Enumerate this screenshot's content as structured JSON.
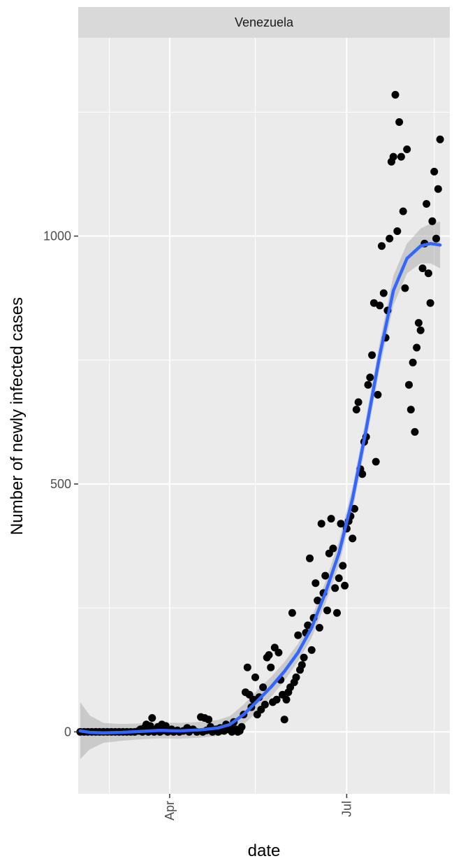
{
  "chart_data": {
    "type": "scatter",
    "facet_label": "Venezuela",
    "xlabel": "date",
    "ylabel": "Number of newly infected cases",
    "x_type": "date",
    "xlim": [
      "2020-02-14",
      "2020-08-23"
    ],
    "ylim": [
      -125,
      1400
    ],
    "x_ticks": [
      {
        "date": "2020-04-01",
        "label": "Apr"
      },
      {
        "date": "2020-07-01",
        "label": "Jul"
      }
    ],
    "x_minor_ticks": [
      "2020-03-01",
      "2020-05-15",
      "2020-08-15"
    ],
    "y_ticks": [
      0,
      500,
      1000
    ],
    "y_minor_ticks": [
      250,
      750,
      1250
    ],
    "grid": true,
    "colors": {
      "points": "#000000",
      "smooth_line": "#3366ff",
      "ribbon": "#999999",
      "panel": "#ebebeb",
      "strip": "#d9d9d9"
    },
    "points": [
      [
        "2020-02-15",
        0
      ],
      [
        "2020-02-17",
        0
      ],
      [
        "2020-02-19",
        0
      ],
      [
        "2020-02-21",
        0
      ],
      [
        "2020-02-23",
        0
      ],
      [
        "2020-02-25",
        0
      ],
      [
        "2020-02-27",
        0
      ],
      [
        "2020-02-29",
        0
      ],
      [
        "2020-03-02",
        0
      ],
      [
        "2020-03-04",
        0
      ],
      [
        "2020-03-06",
        0
      ],
      [
        "2020-03-08",
        0
      ],
      [
        "2020-03-10",
        0
      ],
      [
        "2020-03-12",
        0
      ],
      [
        "2020-03-14",
        0
      ],
      [
        "2020-03-16",
        2
      ],
      [
        "2020-03-17",
        5
      ],
      [
        "2020-03-18",
        0
      ],
      [
        "2020-03-19",
        8
      ],
      [
        "2020-03-20",
        15
      ],
      [
        "2020-03-21",
        0
      ],
      [
        "2020-03-22",
        12
      ],
      [
        "2020-03-23",
        28
      ],
      [
        "2020-03-24",
        0
      ],
      [
        "2020-03-25",
        5
      ],
      [
        "2020-03-26",
        10
      ],
      [
        "2020-03-27",
        0
      ],
      [
        "2020-03-28",
        15
      ],
      [
        "2020-03-29",
        3
      ],
      [
        "2020-03-30",
        12
      ],
      [
        "2020-03-31",
        0
      ],
      [
        "2020-04-02",
        5
      ],
      [
        "2020-04-03",
        0
      ],
      [
        "2020-04-05",
        3
      ],
      [
        "2020-04-06",
        0
      ],
      [
        "2020-04-08",
        2
      ],
      [
        "2020-04-10",
        8
      ],
      [
        "2020-04-11",
        0
      ],
      [
        "2020-04-13",
        5
      ],
      [
        "2020-04-15",
        0
      ],
      [
        "2020-04-17",
        30
      ],
      [
        "2020-04-18",
        0
      ],
      [
        "2020-04-19",
        28
      ],
      [
        "2020-04-20",
        3
      ],
      [
        "2020-04-21",
        25
      ],
      [
        "2020-04-22",
        10
      ],
      [
        "2020-04-23",
        0
      ],
      [
        "2020-04-25",
        5
      ],
      [
        "2020-04-26",
        0
      ],
      [
        "2020-04-27",
        8
      ],
      [
        "2020-04-28",
        3
      ],
      [
        "2020-04-29",
        2
      ],
      [
        "2020-04-30",
        15
      ],
      [
        "2020-05-01",
        5
      ],
      [
        "2020-05-02",
        10
      ],
      [
        "2020-05-03",
        0
      ],
      [
        "2020-05-04",
        20
      ],
      [
        "2020-05-05",
        5
      ],
      [
        "2020-05-06",
        0
      ],
      [
        "2020-05-07",
        2
      ],
      [
        "2020-05-08",
        10
      ],
      [
        "2020-05-09",
        35
      ],
      [
        "2020-05-10",
        80
      ],
      [
        "2020-05-11",
        130
      ],
      [
        "2020-05-12",
        75
      ],
      [
        "2020-05-13",
        50
      ],
      [
        "2020-05-14",
        65
      ],
      [
        "2020-05-15",
        110
      ],
      [
        "2020-05-16",
        35
      ],
      [
        "2020-05-17",
        70
      ],
      [
        "2020-05-18",
        45
      ],
      [
        "2020-05-19",
        90
      ],
      [
        "2020-05-20",
        55
      ],
      [
        "2020-05-21",
        150
      ],
      [
        "2020-05-22",
        155
      ],
      [
        "2020-05-23",
        130
      ],
      [
        "2020-05-24",
        60
      ],
      [
        "2020-05-25",
        170
      ],
      [
        "2020-05-26",
        65
      ],
      [
        "2020-05-27",
        160
      ],
      [
        "2020-05-28",
        105
      ],
      [
        "2020-05-29",
        75
      ],
      [
        "2020-05-30",
        25
      ],
      [
        "2020-05-31",
        65
      ],
      [
        "2020-06-01",
        80
      ],
      [
        "2020-06-02",
        90
      ],
      [
        "2020-06-03",
        240
      ],
      [
        "2020-06-04",
        100
      ],
      [
        "2020-06-05",
        110
      ],
      [
        "2020-06-06",
        195
      ],
      [
        "2020-06-07",
        125
      ],
      [
        "2020-06-08",
        135
      ],
      [
        "2020-06-09",
        150
      ],
      [
        "2020-06-10",
        200
      ],
      [
        "2020-06-11",
        215
      ],
      [
        "2020-06-12",
        350
      ],
      [
        "2020-06-13",
        165
      ],
      [
        "2020-06-14",
        230
      ],
      [
        "2020-06-15",
        300
      ],
      [
        "2020-06-16",
        265
      ],
      [
        "2020-06-17",
        210
      ],
      [
        "2020-06-18",
        420
      ],
      [
        "2020-06-19",
        280
      ],
      [
        "2020-06-20",
        315
      ],
      [
        "2020-06-21",
        245
      ],
      [
        "2020-06-22",
        360
      ],
      [
        "2020-06-23",
        430
      ],
      [
        "2020-06-24",
        370
      ],
      [
        "2020-06-25",
        290
      ],
      [
        "2020-06-26",
        240
      ],
      [
        "2020-06-27",
        310
      ],
      [
        "2020-06-28",
        420
      ],
      [
        "2020-06-29",
        335
      ],
      [
        "2020-06-30",
        295
      ],
      [
        "2020-07-01",
        410
      ],
      [
        "2020-07-02",
        425
      ],
      [
        "2020-07-03",
        435
      ],
      [
        "2020-07-04",
        390
      ],
      [
        "2020-07-05",
        450
      ],
      [
        "2020-07-06",
        650
      ],
      [
        "2020-07-07",
        665
      ],
      [
        "2020-07-08",
        530
      ],
      [
        "2020-07-09",
        520
      ],
      [
        "2020-07-10",
        585
      ],
      [
        "2020-07-11",
        595
      ],
      [
        "2020-07-12",
        700
      ],
      [
        "2020-07-13",
        715
      ],
      [
        "2020-07-14",
        760
      ],
      [
        "2020-07-15",
        865
      ],
      [
        "2020-07-16",
        545
      ],
      [
        "2020-07-17",
        680
      ],
      [
        "2020-07-18",
        860
      ],
      [
        "2020-07-19",
        980
      ],
      [
        "2020-07-20",
        885
      ],
      [
        "2020-07-21",
        795
      ],
      [
        "2020-07-22",
        850
      ],
      [
        "2020-07-23",
        995
      ],
      [
        "2020-07-24",
        1150
      ],
      [
        "2020-07-25",
        1160
      ],
      [
        "2020-07-26",
        1285
      ],
      [
        "2020-07-27",
        1010
      ],
      [
        "2020-07-28",
        1230
      ],
      [
        "2020-07-29",
        1160
      ],
      [
        "2020-07-30",
        1050
      ],
      [
        "2020-07-31",
        895
      ],
      [
        "2020-08-01",
        1175
      ],
      [
        "2020-08-02",
        700
      ],
      [
        "2020-08-03",
        650
      ],
      [
        "2020-08-04",
        745
      ],
      [
        "2020-08-05",
        605
      ],
      [
        "2020-08-06",
        775
      ],
      [
        "2020-08-07",
        825
      ],
      [
        "2020-08-08",
        810
      ],
      [
        "2020-08-09",
        935
      ],
      [
        "2020-08-10",
        985
      ],
      [
        "2020-08-11",
        1065
      ],
      [
        "2020-08-12",
        925
      ],
      [
        "2020-08-13",
        865
      ],
      [
        "2020-08-14",
        1030
      ],
      [
        "2020-08-15",
        1130
      ],
      [
        "2020-08-16",
        995
      ],
      [
        "2020-08-17",
        1095
      ],
      [
        "2020-08-18",
        1195
      ]
    ],
    "smooth": [
      [
        "2020-02-15",
        2,
        -55,
        60
      ],
      [
        "2020-02-20",
        -1,
        -35,
        33
      ],
      [
        "2020-02-27",
        -2,
        -22,
        18
      ],
      [
        "2020-03-07",
        -1,
        -18,
        16
      ],
      [
        "2020-03-17",
        1,
        -15,
        17
      ],
      [
        "2020-03-27",
        3,
        -13,
        19
      ],
      [
        "2020-04-06",
        2,
        -14,
        18
      ],
      [
        "2020-04-16",
        4,
        -12,
        20
      ],
      [
        "2020-04-26",
        8,
        -8,
        24
      ],
      [
        "2020-05-02",
        15,
        -2,
        32
      ],
      [
        "2020-05-09",
        35,
        15,
        55
      ],
      [
        "2020-05-16",
        62,
        40,
        84
      ],
      [
        "2020-05-23",
        90,
        70,
        110
      ],
      [
        "2020-05-30",
        122,
        103,
        141
      ],
      [
        "2020-06-06",
        160,
        142,
        178
      ],
      [
        "2020-06-13",
        210,
        190,
        230
      ],
      [
        "2020-06-20",
        280,
        258,
        302
      ],
      [
        "2020-06-27",
        360,
        336,
        384
      ],
      [
        "2020-07-04",
        470,
        446,
        494
      ],
      [
        "2020-07-11",
        610,
        585,
        635
      ],
      [
        "2020-07-18",
        760,
        733,
        787
      ],
      [
        "2020-07-25",
        890,
        860,
        920
      ],
      [
        "2020-08-01",
        955,
        925,
        985
      ],
      [
        "2020-08-08",
        980,
        945,
        1015
      ],
      [
        "2020-08-13",
        985,
        945,
        1025
      ],
      [
        "2020-08-18",
        982,
        935,
        1029
      ]
    ]
  }
}
